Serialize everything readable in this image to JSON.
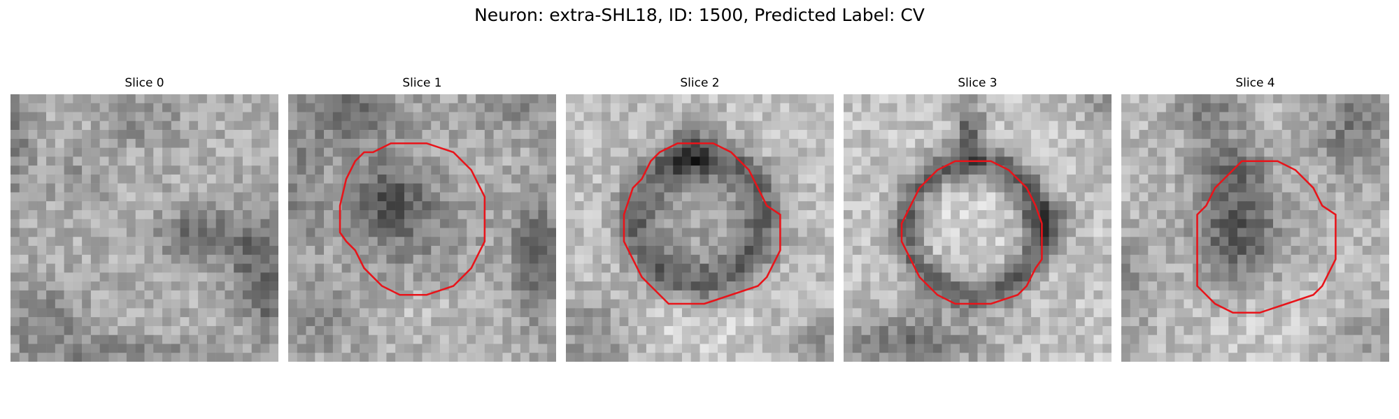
{
  "figure": {
    "title": "Neuron: extra-SHL18, ID: 1500, Predicted Label: CV",
    "contour_color": "#e8141a"
  },
  "panels": [
    {
      "label": "Slice 0",
      "has_contour": false
    },
    {
      "label": "Slice 1",
      "has_contour": true
    },
    {
      "label": "Slice 2",
      "has_contour": true
    },
    {
      "label": "Slice 3",
      "has_contour": true
    },
    {
      "label": "Slice 4",
      "has_contour": true
    }
  ]
}
